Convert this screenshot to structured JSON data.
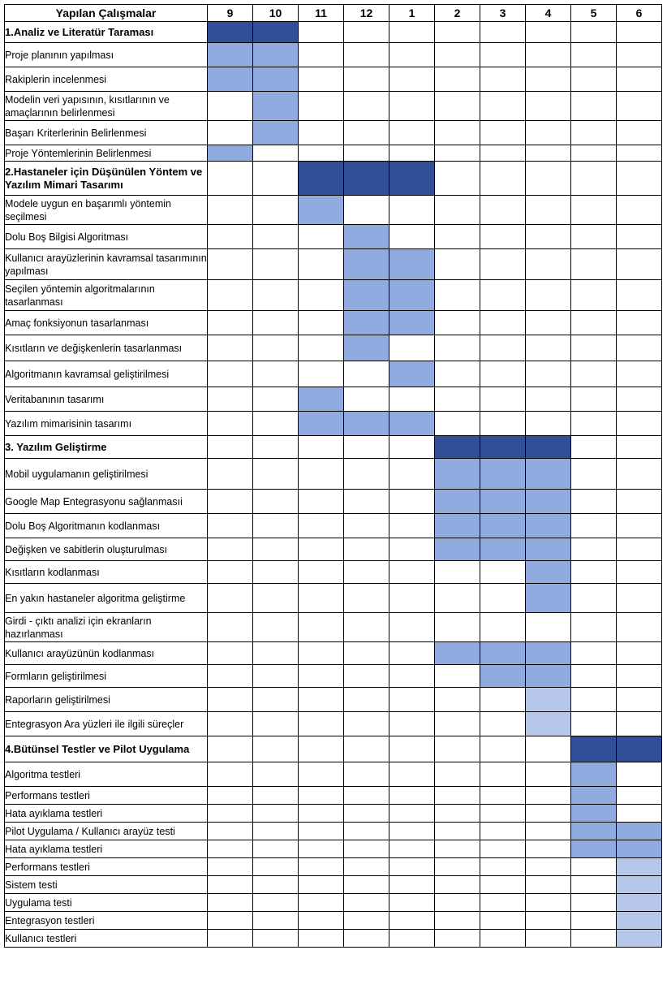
{
  "header": {
    "task_label": "Yapılan Çalışmalar",
    "months": [
      "9",
      "10",
      "11",
      "12",
      "1",
      "2",
      "3",
      "4",
      "5",
      "6"
    ]
  },
  "legend_colors": {
    "dark": "#2f4f97",
    "medium": "#8eaade",
    "light": "#b6c7ea"
  },
  "rows": [
    {
      "label": "1.Analiz ve Literatür Taraması",
      "section": true,
      "cells": [
        "D",
        "D",
        "",
        "",
        "",
        "",
        "",
        "",
        "",
        ""
      ]
    },
    {
      "label": "Proje planının yapılması",
      "cells": [
        "M",
        "M",
        "",
        "",
        "",
        "",
        "",
        "",
        "",
        ""
      ]
    },
    {
      "label": "Rakiplerin incelenmesi",
      "cells": [
        "M",
        "M",
        "",
        "",
        "",
        "",
        "",
        "",
        "",
        ""
      ]
    },
    {
      "label": "Modelin veri yapısının, kısıtlarının ve amaçlarının belirlenmesi",
      "cells": [
        "",
        "M",
        "",
        "",
        "",
        "",
        "",
        "",
        "",
        ""
      ]
    },
    {
      "label": "Başarı Kriterlerinin Belirlenmesi",
      "cells": [
        "",
        "M",
        "",
        "",
        "",
        "",
        "",
        "",
        "",
        ""
      ]
    },
    {
      "label": "Proje Yöntemlerinin Belirlenmesi",
      "cells": [
        "M",
        "",
        "",
        "",
        "",
        "",
        "",
        "",
        "",
        ""
      ]
    },
    {
      "label": "2.Hastaneler için Düşünülen Yöntem ve Yazılım Mimari Tasarımı",
      "section": true,
      "cells": [
        "",
        "",
        "D",
        "D",
        "D",
        "",
        "",
        "",
        "",
        ""
      ]
    },
    {
      "label": "Modele uygun en başarımlı yöntemin seçilmesi",
      "cells": [
        "",
        "",
        "M",
        "",
        "",
        "",
        "",
        "",
        "",
        ""
      ]
    },
    {
      "label": "Dolu Boş Bilgisi Algoritması",
      "cells": [
        "",
        "",
        "",
        "M",
        "",
        "",
        "",
        "",
        "",
        ""
      ]
    },
    {
      "label": "Kullanıcı arayüzlerinin kavramsal tasarımının yapılması",
      "cells": [
        "",
        "",
        "",
        "M",
        "M",
        "",
        "",
        "",
        "",
        ""
      ]
    },
    {
      "label": "Seçilen yöntemin algoritmalarının tasarlanması",
      "cells": [
        "",
        "",
        "",
        "M",
        "M",
        "",
        "",
        "",
        "",
        ""
      ]
    },
    {
      "label": "Amaç fonksiyonun tasarlanması",
      "cells": [
        "",
        "",
        "",
        "M",
        "M",
        "",
        "",
        "",
        "",
        ""
      ]
    },
    {
      "label": "Kısıtların ve değişkenlerin tasarlanması",
      "cells": [
        "",
        "",
        "",
        "M",
        "",
        "",
        "",
        "",
        "",
        ""
      ]
    },
    {
      "label": "Algoritmanın kavramsal geliştirilmesi",
      "cells": [
        "",
        "",
        "",
        "",
        "M",
        "",
        "",
        "",
        "",
        ""
      ]
    },
    {
      "label": "Veritabanının tasarımı",
      "cells": [
        "",
        "",
        "M",
        "",
        "",
        "",
        "",
        "",
        "",
        ""
      ]
    },
    {
      "label": "Yazılım mimarisinin tasarımı",
      "cells": [
        "",
        "",
        "M",
        "M",
        "M",
        "",
        "",
        "",
        "",
        ""
      ]
    },
    {
      "label": "3. Yazılım Geliştirme",
      "section": true,
      "cells": [
        "",
        "",
        "",
        "",
        "",
        "D",
        "D",
        "D",
        "",
        ""
      ]
    },
    {
      "label": "Mobil uygulamanın geliştirilmesi",
      "cells": [
        "",
        "",
        "",
        "",
        "",
        "M",
        "M",
        "M",
        "",
        ""
      ]
    },
    {
      "label": "Google Map Entegrasyonu sağlanmasıi",
      "cells": [
        "",
        "",
        "",
        "",
        "",
        "M",
        "M",
        "M",
        "",
        ""
      ]
    },
    {
      "label": "Dolu Boş Algoritmanın kodlanması",
      "cells": [
        "",
        "",
        "",
        "",
        "",
        "M",
        "M",
        "M",
        "",
        ""
      ]
    },
    {
      "label": "Değişken ve sabitlerin oluşturulması",
      "cells": [
        "",
        "",
        "",
        "",
        "",
        "M",
        "M",
        "M",
        "",
        ""
      ]
    },
    {
      "label": "Kısıtların kodlanması",
      "cells": [
        "",
        "",
        "",
        "",
        "",
        "",
        "",
        "M",
        "",
        ""
      ]
    },
    {
      "label": "En yakın hastaneler algoritma geliştirme",
      "cells": [
        "",
        "",
        "",
        "",
        "",
        "",
        "",
        "M",
        "",
        ""
      ]
    },
    {
      "label": "Girdi - çıktı analizi için ekranların hazırlanması",
      "cells": [
        "",
        "",
        "",
        "",
        "",
        "",
        "",
        "",
        "",
        ""
      ]
    },
    {
      "label": "Kullanıcı arayüzünün kodlanması",
      "cells": [
        "",
        "",
        "",
        "",
        "",
        "M",
        "M",
        "M",
        "",
        ""
      ]
    },
    {
      "label": "Formların geliştirilmesi",
      "cells": [
        "",
        "",
        "",
        "",
        "",
        "",
        "M",
        "M",
        "",
        ""
      ]
    },
    {
      "label": "Raporların geliştirilmesi",
      "cells": [
        "",
        "",
        "",
        "",
        "",
        "",
        "",
        "L",
        "",
        ""
      ]
    },
    {
      "label": "Entegrasyon Ara yüzleri ile ilgili süreçler",
      "cells": [
        "",
        "",
        "",
        "",
        "",
        "",
        "",
        "L",
        "",
        ""
      ]
    },
    {
      "label": "4.Bütünsel Testler ve Pilot Uygulama",
      "section": true,
      "cells": [
        "",
        "",
        "",
        "",
        "",
        "",
        "",
        "",
        "D",
        "D"
      ]
    },
    {
      "label": "Algoritma testleri",
      "cells": [
        "",
        "",
        "",
        "",
        "",
        "",
        "",
        "",
        "M",
        ""
      ]
    },
    {
      "label": "Performans testleri",
      "cells": [
        "",
        "",
        "",
        "",
        "",
        "",
        "",
        "",
        "M",
        ""
      ]
    },
    {
      "label": "Hata ayıklama testleri",
      "cells": [
        "",
        "",
        "",
        "",
        "",
        "",
        "",
        "",
        "M",
        ""
      ]
    },
    {
      "label": "Pilot Uygulama / Kullanıcı arayüz testi",
      "cells": [
        "",
        "",
        "",
        "",
        "",
        "",
        "",
        "",
        "M",
        "M"
      ]
    },
    {
      "label": "Hata ayıklama testleri",
      "cells": [
        "",
        "",
        "",
        "",
        "",
        "",
        "",
        "",
        "M",
        "M"
      ]
    },
    {
      "label": "Performans testleri",
      "cells": [
        "",
        "",
        "",
        "",
        "",
        "",
        "",
        "",
        "",
        "L"
      ]
    },
    {
      "label": "Sistem testi",
      "cells": [
        "",
        "",
        "",
        "",
        "",
        "",
        "",
        "",
        "",
        "L"
      ]
    },
    {
      "label": "Uygulama testi",
      "cells": [
        "",
        "",
        "",
        "",
        "",
        "",
        "",
        "",
        "",
        "L"
      ]
    },
    {
      "label": "Entegrasyon testleri",
      "cells": [
        "",
        "",
        "",
        "",
        "",
        "",
        "",
        "",
        "",
        "L"
      ]
    },
    {
      "label": "Kullanıcı testleri",
      "cells": [
        "",
        "",
        "",
        "",
        "",
        "",
        "",
        "",
        "",
        "L"
      ]
    }
  ]
}
